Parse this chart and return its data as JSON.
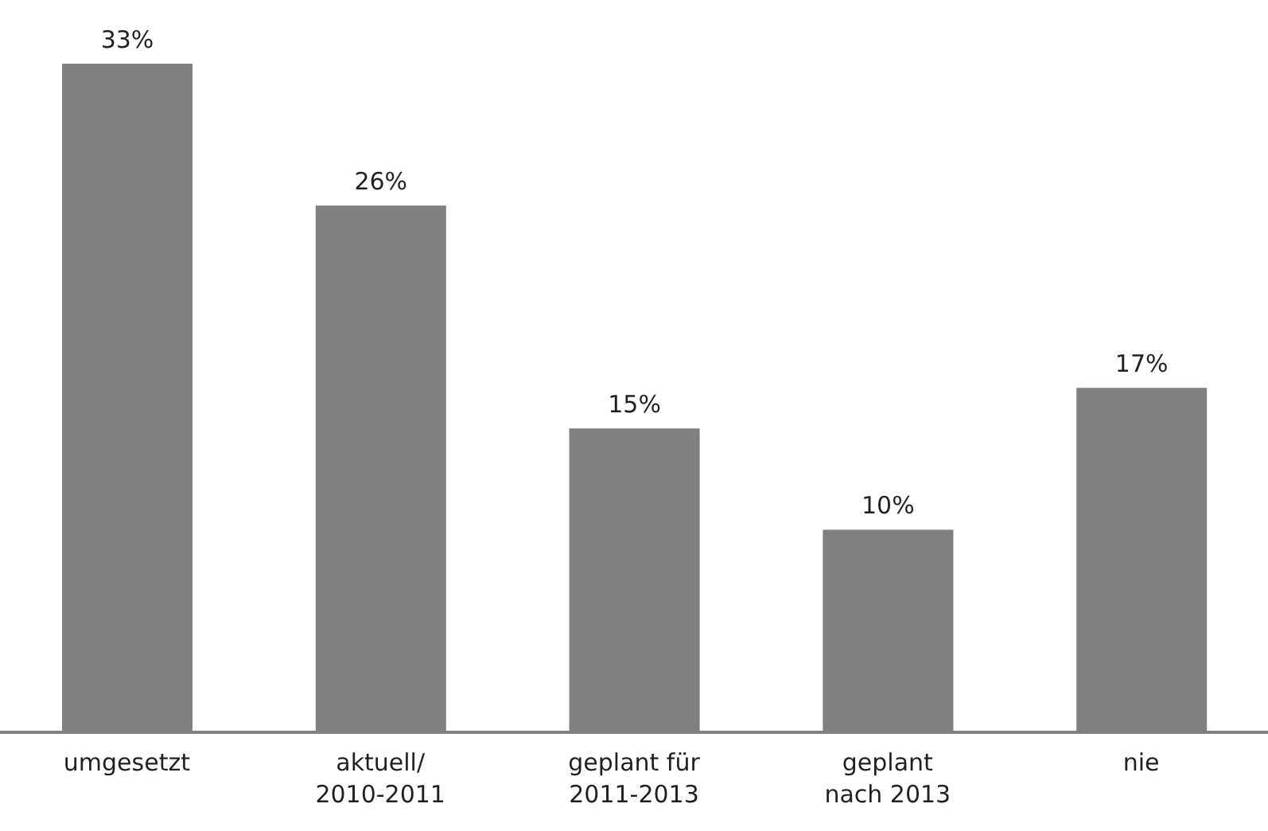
{
  "chart_data": {
    "type": "bar",
    "categories": [
      "umgesetzt",
      "aktuell/\n2010-2011",
      "geplant für\n2011-2013",
      "geplant\nnach 2013",
      "nie"
    ],
    "values": [
      33,
      26,
      15,
      10,
      17
    ],
    "color": "#808083",
    "value_labels": [
      "33%",
      "26%",
      "15%",
      "10%",
      "17%"
    ],
    "grid": false,
    "legend": false
  }
}
